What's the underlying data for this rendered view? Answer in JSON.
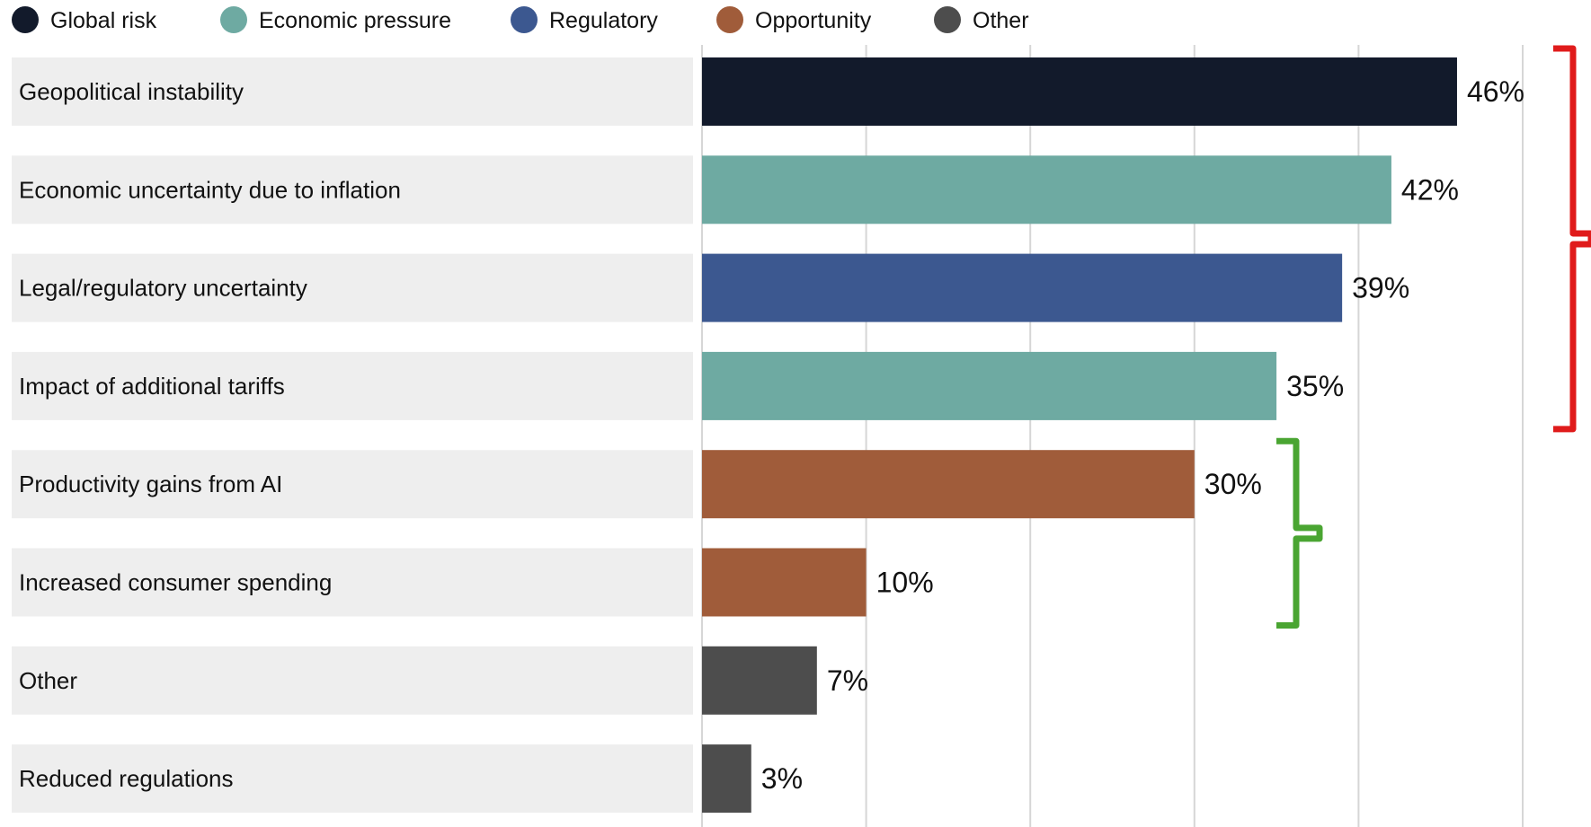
{
  "chart_data": {
    "type": "bar",
    "orientation": "horizontal",
    "title": "",
    "xlabel": "",
    "ylabel": "",
    "xlim": [
      0,
      50
    ],
    "grid": true,
    "legend_position": "top-left",
    "legend": [
      {
        "label": "Global risk",
        "color": "#121a2b"
      },
      {
        "label": "Economic pressure",
        "color": "#6eaaa2"
      },
      {
        "label": "Regulatory",
        "color": "#3c5890"
      },
      {
        "label": "Opportunity",
        "color": "#a05c3a"
      },
      {
        "label": "Other",
        "color": "#4d4d4d"
      }
    ],
    "categories": [
      "Geopolitical instability",
      "Economic uncertainty due to inflation",
      "Legal/regulatory uncertainty",
      "Impact of additional tariffs",
      "Productivity gains from AI",
      "Increased consumer spending",
      "Other",
      "Reduced regulations"
    ],
    "values": [
      46,
      42,
      39,
      35,
      30,
      10,
      7,
      3
    ],
    "value_labels": [
      "46%",
      "42%",
      "39%",
      "35%",
      "30%",
      "10%",
      "7%",
      "3%"
    ],
    "bar_groups": [
      "Global risk",
      "Economic pressure",
      "Regulatory",
      "Economic pressure",
      "Opportunity",
      "Opportunity",
      "Other",
      "Other"
    ],
    "annotations": [
      {
        "type": "bracket",
        "color": "#e01b1b",
        "from_category": 0,
        "to_category": 3
      },
      {
        "type": "bracket",
        "color": "#4aa532",
        "from_category": 4,
        "to_category": 5
      }
    ]
  }
}
